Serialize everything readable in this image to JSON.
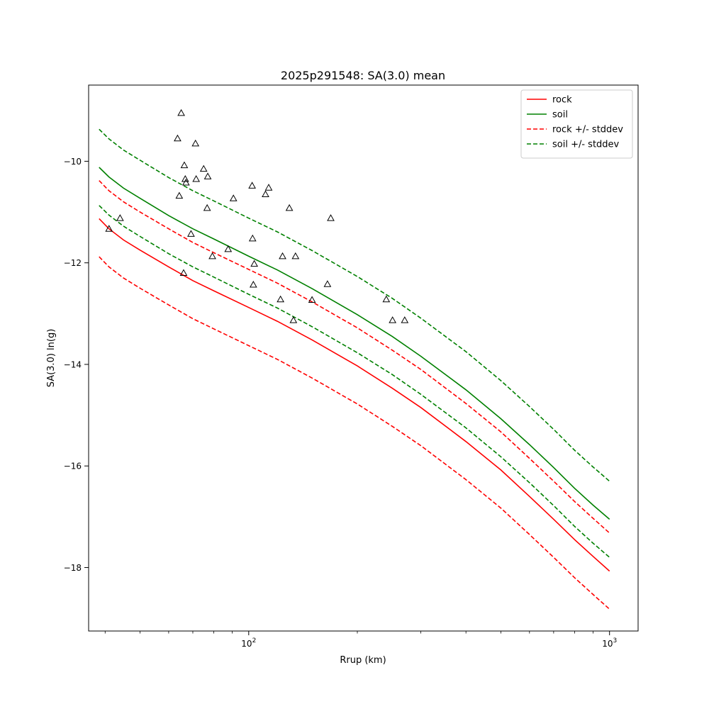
{
  "chart_data": {
    "type": "line",
    "title": "2025p291548: SA(3.0) mean",
    "xlabel": "Rrup (km)",
    "ylabel": "SA(3.0) ln(g)",
    "xscale": "log",
    "xlim": [
      36,
      1200
    ],
    "ylim": [
      -19.25,
      -8.5
    ],
    "grid": false,
    "legend_position": "top-right",
    "x_major_ticks": [
      {
        "value": 100,
        "label": "10^2",
        "base": "10",
        "exp": "2"
      },
      {
        "value": 1000,
        "label": "10^3",
        "base": "10",
        "exp": "3"
      }
    ],
    "x_minor_ticks": [
      40,
      50,
      60,
      70,
      80,
      90,
      200,
      300,
      400,
      500,
      600,
      700,
      800,
      900
    ],
    "y_ticks": [
      {
        "value": -10,
        "label": "−10"
      },
      {
        "value": -12,
        "label": "−12"
      },
      {
        "value": -14,
        "label": "−14"
      },
      {
        "value": -16,
        "label": "−16"
      },
      {
        "value": -18,
        "label": "−18"
      }
    ],
    "x": [
      38.5,
      41,
      45,
      50,
      60,
      70,
      80,
      100,
      120,
      150,
      200,
      250,
      300,
      400,
      500,
      600,
      700,
      800,
      900,
      1000
    ],
    "series": [
      {
        "name": "rock",
        "color": "#ff0000",
        "style": "solid",
        "values": [
          -11.13,
          -11.33,
          -11.55,
          -11.75,
          -12.08,
          -12.35,
          -12.55,
          -12.88,
          -13.15,
          -13.52,
          -14.03,
          -14.47,
          -14.85,
          -15.52,
          -16.08,
          -16.6,
          -17.05,
          -17.45,
          -17.78,
          -18.07
        ]
      },
      {
        "name": "soil",
        "color": "#008000",
        "style": "solid",
        "values": [
          -10.12,
          -10.31,
          -10.53,
          -10.73,
          -11.07,
          -11.33,
          -11.53,
          -11.87,
          -12.14,
          -12.51,
          -13.02,
          -13.45,
          -13.84,
          -14.5,
          -15.07,
          -15.58,
          -16.03,
          -16.44,
          -16.77,
          -17.05
        ]
      },
      {
        "name": "rock +/- stddev",
        "color": "#ff0000",
        "style": "dashed",
        "values": [
          -10.38,
          -10.58,
          -10.8,
          -11.0,
          -11.33,
          -11.6,
          -11.8,
          -12.13,
          -12.4,
          -12.77,
          -13.28,
          -13.72,
          -14.1,
          -14.77,
          -15.33,
          -15.85,
          -16.3,
          -16.7,
          -17.03,
          -17.32
        ]
      },
      {
        "name": "",
        "color": "#ff0000",
        "style": "dashed",
        "values": [
          -11.88,
          -12.08,
          -12.3,
          -12.5,
          -12.83,
          -13.1,
          -13.3,
          -13.63,
          -13.9,
          -14.27,
          -14.78,
          -15.22,
          -15.6,
          -16.27,
          -16.83,
          -17.35,
          -17.8,
          -18.2,
          -18.53,
          -18.82
        ]
      },
      {
        "name": "soil +/- stddev",
        "color": "#008000",
        "style": "dashed",
        "values": [
          -9.37,
          -9.56,
          -9.78,
          -9.98,
          -10.32,
          -10.58,
          -10.78,
          -11.12,
          -11.39,
          -11.76,
          -12.27,
          -12.7,
          -13.09,
          -13.75,
          -14.32,
          -14.83,
          -15.28,
          -15.69,
          -16.02,
          -16.3
        ]
      },
      {
        "name": "",
        "color": "#008000",
        "style": "dashed",
        "values": [
          -10.87,
          -11.06,
          -11.28,
          -11.48,
          -11.82,
          -12.08,
          -12.28,
          -12.62,
          -12.89,
          -13.26,
          -13.77,
          -14.2,
          -14.59,
          -15.25,
          -15.82,
          -16.33,
          -16.78,
          -17.19,
          -17.52,
          -17.8
        ]
      }
    ],
    "observations": {
      "marker": "triangle",
      "color": "#000000",
      "points": [
        {
          "x": 41,
          "y": -11.33
        },
        {
          "x": 44,
          "y": -11.12
        },
        {
          "x": 63.5,
          "y": -9.55
        },
        {
          "x": 64.2,
          "y": -10.68
        },
        {
          "x": 65,
          "y": -9.05
        },
        {
          "x": 66,
          "y": -12.2
        },
        {
          "x": 66.3,
          "y": -10.08
        },
        {
          "x": 66.7,
          "y": -10.35
        },
        {
          "x": 67,
          "y": -10.42
        },
        {
          "x": 69.2,
          "y": -11.43
        },
        {
          "x": 71.2,
          "y": -9.65
        },
        {
          "x": 71.5,
          "y": -10.35
        },
        {
          "x": 75,
          "y": -10.15
        },
        {
          "x": 76.7,
          "y": -10.92
        },
        {
          "x": 77,
          "y": -10.3
        },
        {
          "x": 79.3,
          "y": -11.87
        },
        {
          "x": 87.7,
          "y": -11.73
        },
        {
          "x": 90.7,
          "y": -10.73
        },
        {
          "x": 102.2,
          "y": -10.48
        },
        {
          "x": 102.5,
          "y": -11.52
        },
        {
          "x": 103,
          "y": -12.43
        },
        {
          "x": 103.6,
          "y": -12.02
        },
        {
          "x": 111.3,
          "y": -10.65
        },
        {
          "x": 113.6,
          "y": -10.52
        },
        {
          "x": 122.5,
          "y": -12.72
        },
        {
          "x": 124.1,
          "y": -11.87
        },
        {
          "x": 129.6,
          "y": -10.92
        },
        {
          "x": 133,
          "y": -13.13
        },
        {
          "x": 134.8,
          "y": -11.87
        },
        {
          "x": 149.8,
          "y": -12.73
        },
        {
          "x": 165.3,
          "y": -12.42
        },
        {
          "x": 168.8,
          "y": -11.12
        },
        {
          "x": 240.6,
          "y": -12.72
        },
        {
          "x": 250.4,
          "y": -13.13
        },
        {
          "x": 270.6,
          "y": -13.13
        }
      ]
    }
  }
}
